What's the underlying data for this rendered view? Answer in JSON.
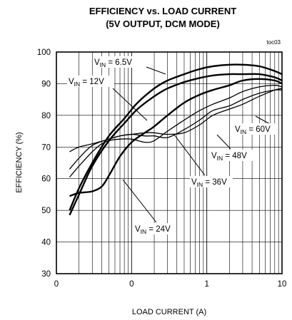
{
  "chart_data": {
    "type": "line",
    "title": [
      "EFFICIENCY vs. LOAD CURRENT",
      "(5V OUTPUT, DCM MODE)"
    ],
    "tag": "toc03",
    "xlabel": "LOAD CURRENT  (A)",
    "ylabel": "EFFICIENCY (%)",
    "xscale": "log",
    "xlim": [
      0.01,
      10
    ],
    "ylim": [
      30,
      100
    ],
    "x_tick_labels": [
      "0",
      "0",
      "1",
      "10"
    ],
    "y_tick_labels": [
      "30",
      "40",
      "50",
      "60",
      "70",
      "80",
      "90",
      "100"
    ],
    "y_ticks": [
      30,
      40,
      50,
      60,
      70,
      80,
      90,
      100
    ],
    "grid": true,
    "legend": "none",
    "series": [
      {
        "name": "VIN = 6.5V",
        "x": [
          0.015,
          0.02,
          0.03,
          0.05,
          0.08,
          0.12,
          0.2,
          0.3,
          0.5,
          0.8,
          1.2,
          2,
          3,
          5,
          8,
          10
        ],
        "y": [
          50,
          57,
          65,
          73.5,
          79,
          84,
          88.5,
          91,
          93,
          94.6,
          95.5,
          96,
          96,
          95.5,
          94,
          93
        ]
      },
      {
        "name": "VIN = 12V",
        "x": [
          0.015,
          0.02,
          0.03,
          0.05,
          0.08,
          0.12,
          0.2,
          0.3,
          0.5,
          0.8,
          1.2,
          2,
          3,
          5,
          8,
          10
        ],
        "y": [
          48.5,
          55,
          64,
          72,
          77.5,
          82,
          86,
          88.5,
          90.5,
          91.8,
          92.6,
          93,
          93,
          93,
          92,
          91
        ]
      },
      {
        "name": "VIN = 24V",
        "x": [
          0.015,
          0.02,
          0.03,
          0.04,
          0.05,
          0.07,
          0.1,
          0.15,
          0.2,
          0.3,
          0.5,
          0.8,
          1.2,
          2,
          3,
          5,
          8,
          10
        ],
        "y": [
          54.5,
          55.5,
          56,
          57.5,
          61,
          67,
          71.5,
          74.5,
          76.5,
          80,
          84,
          86.5,
          88,
          89.5,
          91,
          91.5,
          91,
          90
        ]
      },
      {
        "name": "VIN = 36V",
        "x": [
          0.015,
          0.02,
          0.03,
          0.04,
          0.05,
          0.07,
          0.1,
          0.15,
          0.2,
          0.3,
          0.5,
          0.8,
          1.2,
          2,
          3,
          5,
          8,
          10
        ],
        "y": [
          60.5,
          64,
          68.5,
          71,
          72,
          72.5,
          72.5,
          71.5,
          72,
          75,
          78.5,
          81.5,
          83.5,
          85.5,
          87.5,
          89,
          89.5,
          89
        ]
      },
      {
        "name": "VIN = 48V",
        "x": [
          0.015,
          0.02,
          0.03,
          0.05,
          0.07,
          0.1,
          0.15,
          0.2,
          0.3,
          0.5,
          0.8,
          1.2,
          2,
          3,
          5,
          8,
          10
        ],
        "y": [
          63,
          66.5,
          70.5,
          72.5,
          73.5,
          74,
          73.5,
          73.5,
          73,
          75.5,
          78.5,
          81.5,
          83,
          85,
          87,
          88,
          88
        ]
      },
      {
        "name": "VIN = 60V",
        "x": [
          0.015,
          0.02,
          0.03,
          0.05,
          0.07,
          0.1,
          0.15,
          0.2,
          0.3,
          0.5,
          0.8,
          1.2,
          2,
          3,
          5,
          8,
          10
        ],
        "y": [
          68.5,
          70,
          71,
          72.5,
          73.5,
          74,
          74.5,
          74.5,
          74,
          74.5,
          77,
          80,
          82,
          83.5,
          86,
          88,
          88.5
        ]
      }
    ],
    "annotations": [
      {
        "prefix": "V",
        "sub": "IN",
        "suffix": " = 6.5V",
        "series": "VIN = 6.5V"
      },
      {
        "prefix": "V",
        "sub": "IN",
        "suffix": " = 12V",
        "series": "VIN = 12V"
      },
      {
        "prefix": "V",
        "sub": "IN",
        "suffix": " = 60V",
        "series": "VIN = 60V"
      },
      {
        "prefix": "V",
        "sub": "IN",
        "suffix": " = 48V",
        "series": "VIN = 48V"
      },
      {
        "prefix": "V",
        "sub": "IN",
        "suffix": " = 36V",
        "series": "VIN = 36V"
      },
      {
        "prefix": "V",
        "sub": "IN",
        "suffix": " = 24V",
        "series": "VIN = 24V"
      }
    ]
  }
}
